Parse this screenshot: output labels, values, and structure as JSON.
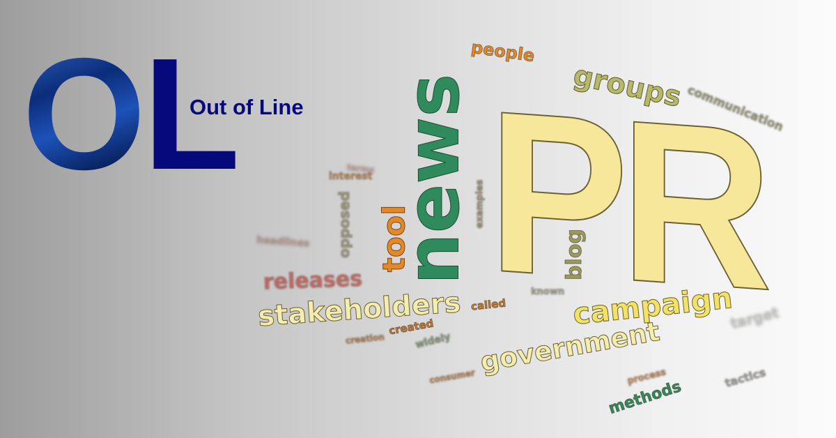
{
  "logo": {
    "o": "O",
    "l": "L",
    "tagline": "Out of Line"
  },
  "cloud": {
    "pr": "PR",
    "news": "news",
    "people": "people",
    "groups": "groups",
    "communication": "communication",
    "tool": "tool",
    "blog": "blog",
    "campaign": "campaign",
    "stakeholders": "stakeholders",
    "government": "government",
    "releases": "releases",
    "interest": "interest",
    "opposed": "opposed",
    "examples": "examples",
    "called": "called",
    "created": "created",
    "creation": "creation",
    "methods": "methods",
    "tactics": "tactics",
    "target": "target",
    "known": "known",
    "process": "process",
    "consumer": "consumer",
    "widely": "widely",
    "headlines": "headlines",
    "terms": "terms"
  },
  "colors": {
    "logo_l": "#06097c",
    "tagline": "#06097c",
    "pr_yellow": "#f7e79a",
    "news_green": "#2f8a5c",
    "orange": "#e3892a",
    "olive": "#9a9a5a",
    "red": "#c0504a"
  }
}
